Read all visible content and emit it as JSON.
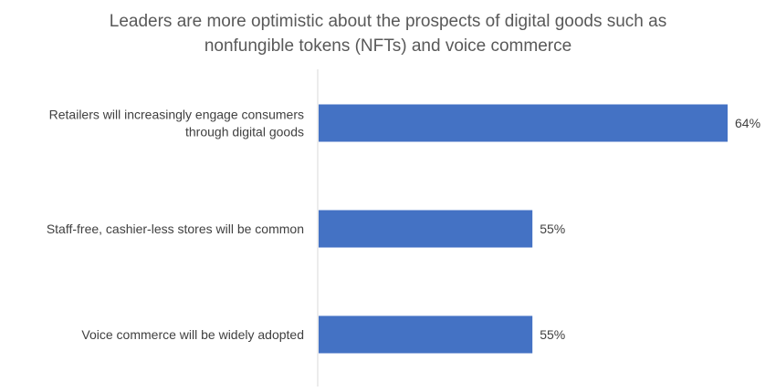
{
  "chart_data": {
    "type": "bar",
    "orientation": "horizontal",
    "title_lines": [
      "Leaders are more optimistic about the prospects of digital goods such as",
      "nonfungible tokens (NFTs) and voice commerce"
    ],
    "categories": [
      [
        "Retailers will increasingly engage consumers",
        "through digital goods"
      ],
      [
        "Staff-free, cashier-less stores will be common"
      ],
      [
        "Voice commerce will be widely adopted"
      ]
    ],
    "values": [
      64,
      55,
      55
    ],
    "data_labels": [
      "64%",
      "55%",
      "55%"
    ],
    "value_unit": "%",
    "xlim": [
      45.1,
      64
    ],
    "grid": false,
    "legend": "none",
    "bar_color": "#4472C4",
    "axis_color": "#D9D9D9"
  }
}
